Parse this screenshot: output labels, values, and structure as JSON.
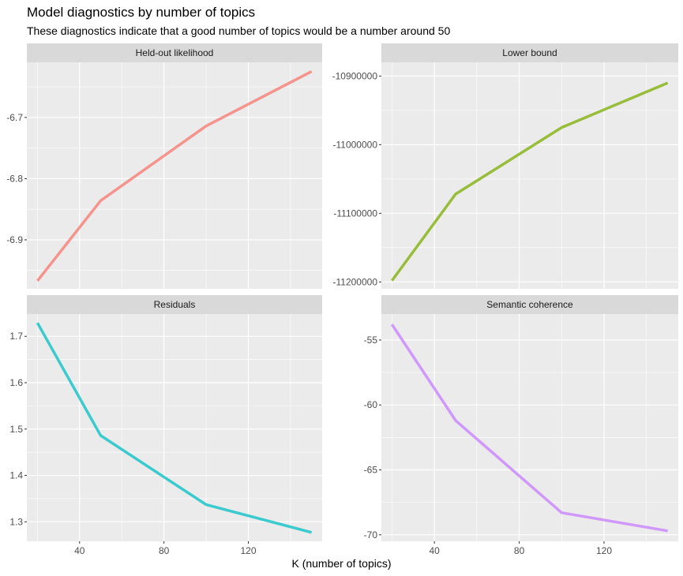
{
  "title": "Model diagnostics by number of topics",
  "subtitle": "These diagnostics indicate that a good number of topics would be a number around 50",
  "xlabel": "K (number of topics)",
  "chart_data": {
    "type": "line",
    "x_ticks": [
      40,
      80,
      120
    ],
    "xlim": [
      15,
      155
    ],
    "grid": true,
    "panels": [
      {
        "facet": "Held-out likelihood",
        "color": "#F8766D",
        "x": [
          20,
          50,
          100,
          150
        ],
        "y": [
          -6.967,
          -6.836,
          -6.714,
          -6.625
        ],
        "ylim": [
          -6.98,
          -6.61
        ],
        "y_ticks": [
          -6.7,
          -6.8,
          -6.9
        ],
        "y_tick_labels": [
          "-6.7",
          "-6.8",
          "-6.9"
        ]
      },
      {
        "facet": "Lower bound",
        "color": "#7CAE00",
        "x": [
          20,
          50,
          100,
          150
        ],
        "y": [
          -11198000,
          -11072000,
          -10975000,
          -10910000
        ],
        "ylim": [
          -11210000,
          -10880000
        ],
        "y_ticks": [
          -10900000,
          -11000000,
          -11100000,
          -11200000
        ],
        "y_tick_labels": [
          "-10900000",
          "-11000000",
          "-11100000",
          "-11200000"
        ]
      },
      {
        "facet": "Residuals",
        "color": "#00BFC4",
        "x": [
          20,
          50,
          100,
          150
        ],
        "y": [
          1.729,
          1.486,
          1.337,
          1.277
        ],
        "ylim": [
          1.258,
          1.748
        ],
        "y_ticks": [
          1.7,
          1.6,
          1.5,
          1.4,
          1.3
        ],
        "y_tick_labels": [
          "1.7",
          "1.6",
          "1.5",
          "1.4",
          "1.3"
        ]
      },
      {
        "facet": "Semantic coherence",
        "color": "#C77CFF",
        "x": [
          20,
          50,
          100,
          150
        ],
        "y": [
          -53.8,
          -61.2,
          -68.3,
          -69.7
        ],
        "ylim": [
          -70.5,
          -53.0
        ],
        "y_ticks": [
          -55,
          -60,
          -65,
          -70
        ],
        "y_tick_labels": [
          "-55",
          "-60",
          "-65",
          "-70"
        ]
      }
    ]
  }
}
